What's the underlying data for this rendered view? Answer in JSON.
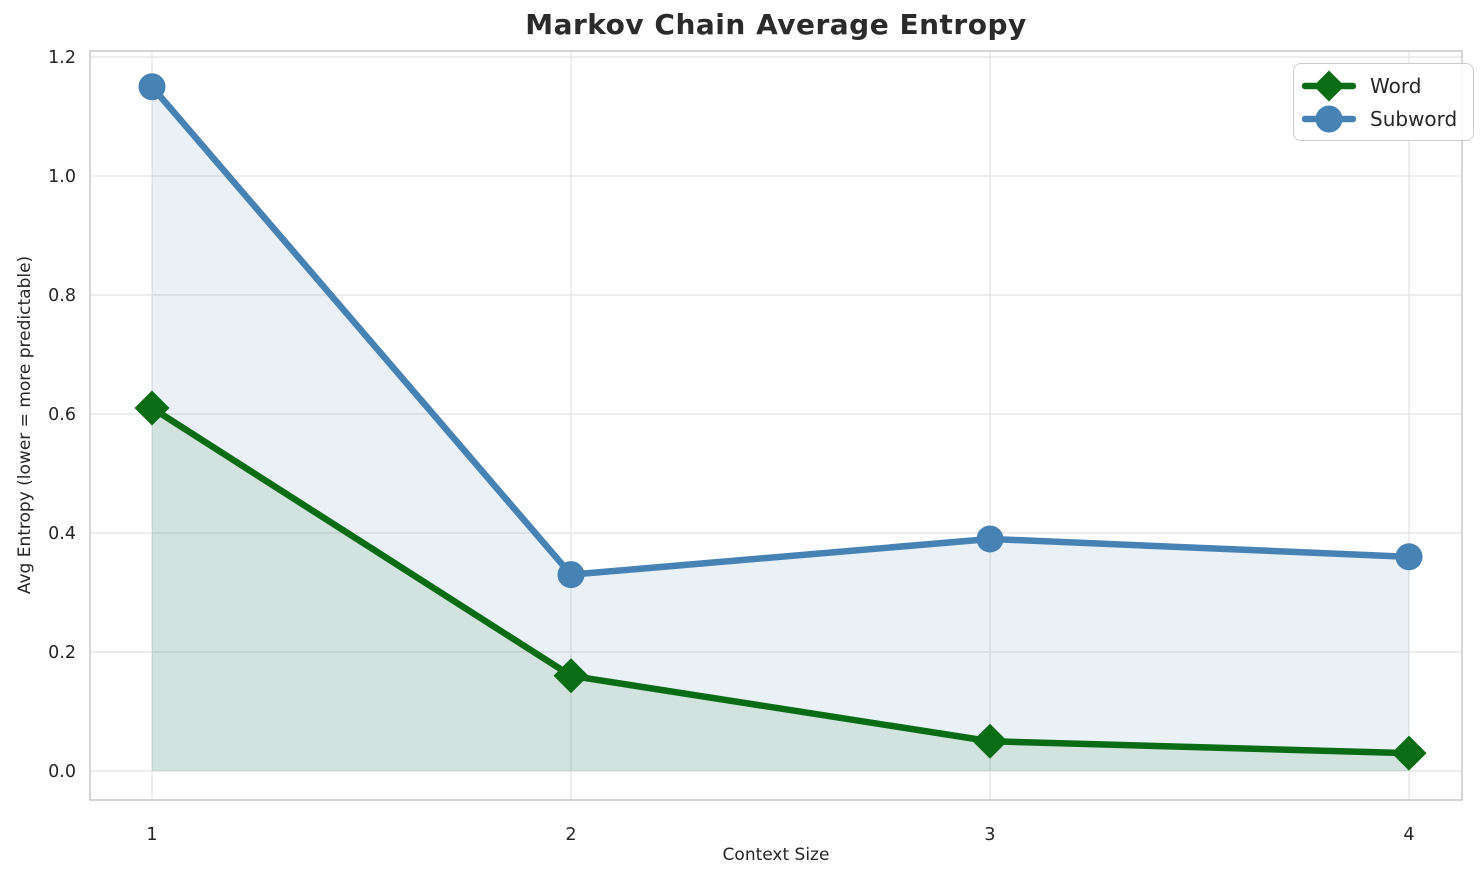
{
  "chart_data": {
    "type": "line",
    "title": "Markov Chain Average Entropy",
    "xlabel": "Context Size",
    "ylabel": "Avg Entropy (lower = more predictable)",
    "x": [
      1,
      2,
      3,
      4
    ],
    "xtick_labels": [
      "1",
      "2",
      "3",
      "4"
    ],
    "ytick_values": [
      0.0,
      0.2,
      0.4,
      0.6,
      0.8,
      1.0,
      1.2
    ],
    "ytick_labels": [
      "0.0",
      "0.2",
      "0.4",
      "0.6",
      "0.8",
      "1.0",
      "1.2"
    ],
    "ylim": [
      0.0,
      1.2
    ],
    "grid": true,
    "area_fill": true,
    "legend_position": "upper-right",
    "series": [
      {
        "name": "Word",
        "marker": "diamond",
        "color": "#0a6d15",
        "fill_opacity": 0.1,
        "values": [
          0.61,
          0.16,
          0.05,
          0.03
        ]
      },
      {
        "name": "Subword",
        "marker": "circle",
        "color": "#4682b4",
        "fill_opacity": 0.12,
        "values": [
          1.15,
          0.33,
          0.39,
          0.36
        ]
      }
    ]
  },
  "style_colors": {
    "grid": "#e7e7e7",
    "spine": "#cccccc",
    "tick_text": "#262626",
    "title_text": "#2b2b2b",
    "background": "#ffffff"
  }
}
